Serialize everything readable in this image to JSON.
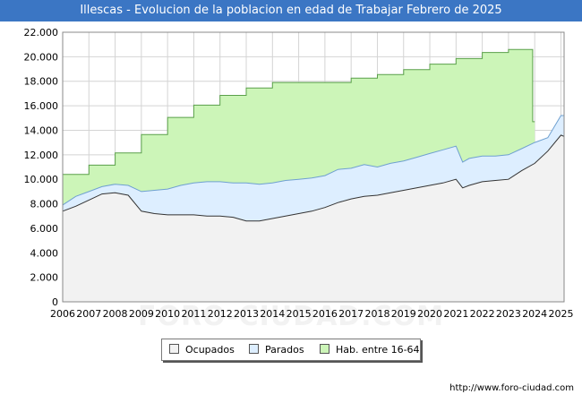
{
  "header": {
    "title": "Illescas - Evolucion de la poblacion en edad de Trabajar Febrero de 2025"
  },
  "watermark": "FORO-CIUDAD.COM",
  "source": "http://www.foro-ciudad.com",
  "colors": {
    "title_bar": "#3b76c4",
    "ocupados": "#f2f2f2",
    "parados": "#ddeeff",
    "hab": "#ccf5b8"
  },
  "chart_data": {
    "type": "area",
    "title": "Illescas - Evolucion de la poblacion en edad de Trabajar Febrero de 2025",
    "xlabel": "",
    "ylabel": "",
    "xlim": [
      2006,
      2025.12
    ],
    "ylim": [
      0,
      22000
    ],
    "x_ticks": [
      "2006",
      "2007",
      "2008",
      "2009",
      "2010",
      "2011",
      "2012",
      "2013",
      "2014",
      "2015",
      "2016",
      "2017",
      "2018",
      "2019",
      "2020",
      "2021",
      "2022",
      "2023",
      "2024",
      "2025"
    ],
    "y_ticks": [
      "0",
      "2.000",
      "4.000",
      "6.000",
      "8.000",
      "10.000",
      "12.000",
      "14.000",
      "16.000",
      "18.000",
      "20.000",
      "22.000"
    ],
    "grid": true,
    "legend_position": "bottom",
    "legend": [
      "Ocupados",
      "Parados",
      "Hab. entre 16-64"
    ],
    "series": [
      {
        "name": "Hab. entre 16-64",
        "x": [
          2006,
          2007,
          2007,
          2008,
          2008,
          2009,
          2009,
          2010,
          2010,
          2011,
          2011,
          2012,
          2012,
          2013,
          2013,
          2014,
          2014,
          2015,
          2015,
          2016,
          2016,
          2017,
          2017,
          2018,
          2018,
          2019,
          2019,
          2020,
          2020,
          2021,
          2021,
          2022,
          2022,
          2023,
          2023,
          2023.92,
          2023.92,
          2024
        ],
        "values": [
          10400,
          10400,
          11150,
          11150,
          12150,
          12150,
          13650,
          13650,
          15050,
          15050,
          16050,
          16050,
          16850,
          16850,
          17450,
          17450,
          17900,
          17900,
          17900,
          17900,
          17900,
          17900,
          18250,
          18250,
          18550,
          18550,
          18950,
          18950,
          19400,
          19400,
          19850,
          19850,
          20350,
          20350,
          20600,
          20600,
          14700,
          14700
        ]
      },
      {
        "name": "Parados",
        "x": [
          2006,
          2006.5,
          2007,
          2007.5,
          2008,
          2008.5,
          2009,
          2009.5,
          2010,
          2010.5,
          2011,
          2011.5,
          2012,
          2012.5,
          2013,
          2013.5,
          2014,
          2014.5,
          2015,
          2015.5,
          2016,
          2016.5,
          2017,
          2017.5,
          2018,
          2018.5,
          2019,
          2019.5,
          2020,
          2020.5,
          2021,
          2021.25,
          2021.5,
          2022,
          2022.5,
          2023,
          2023.5,
          2024,
          2024.5,
          2025,
          2025.12
        ],
        "values": [
          7900,
          8600,
          9000,
          9400,
          9600,
          9500,
          9000,
          9100,
          9200,
          9500,
          9700,
          9800,
          9800,
          9700,
          9700,
          9600,
          9700,
          9900,
          10000,
          10100,
          10300,
          10800,
          10900,
          11200,
          11000,
          11300,
          11500,
          11800,
          12100,
          12400,
          12700,
          11400,
          11700,
          11900,
          11900,
          12000,
          12500,
          13000,
          13400,
          15200,
          15200
        ]
      },
      {
        "name": "Ocupados",
        "x": [
          2006,
          2006.5,
          2007,
          2007.5,
          2008,
          2008.5,
          2009,
          2009.5,
          2010,
          2010.5,
          2011,
          2011.5,
          2012,
          2012.5,
          2013,
          2013.5,
          2014,
          2014.5,
          2015,
          2015.5,
          2016,
          2016.5,
          2017,
          2017.5,
          2018,
          2018.5,
          2019,
          2019.5,
          2020,
          2020.5,
          2021,
          2021.25,
          2021.5,
          2022,
          2022.5,
          2023,
          2023.5,
          2024,
          2024.5,
          2025,
          2025.12
        ],
        "values": [
          7400,
          7800,
          8300,
          8800,
          8900,
          8700,
          7400,
          7200,
          7100,
          7100,
          7100,
          7000,
          7000,
          6900,
          6600,
          6600,
          6800,
          7000,
          7200,
          7400,
          7700,
          8100,
          8400,
          8600,
          8700,
          8900,
          9100,
          9300,
          9500,
          9700,
          10000,
          9300,
          9500,
          9800,
          9900,
          10000,
          10700,
          11300,
          12300,
          13600,
          13500
        ]
      }
    ]
  }
}
